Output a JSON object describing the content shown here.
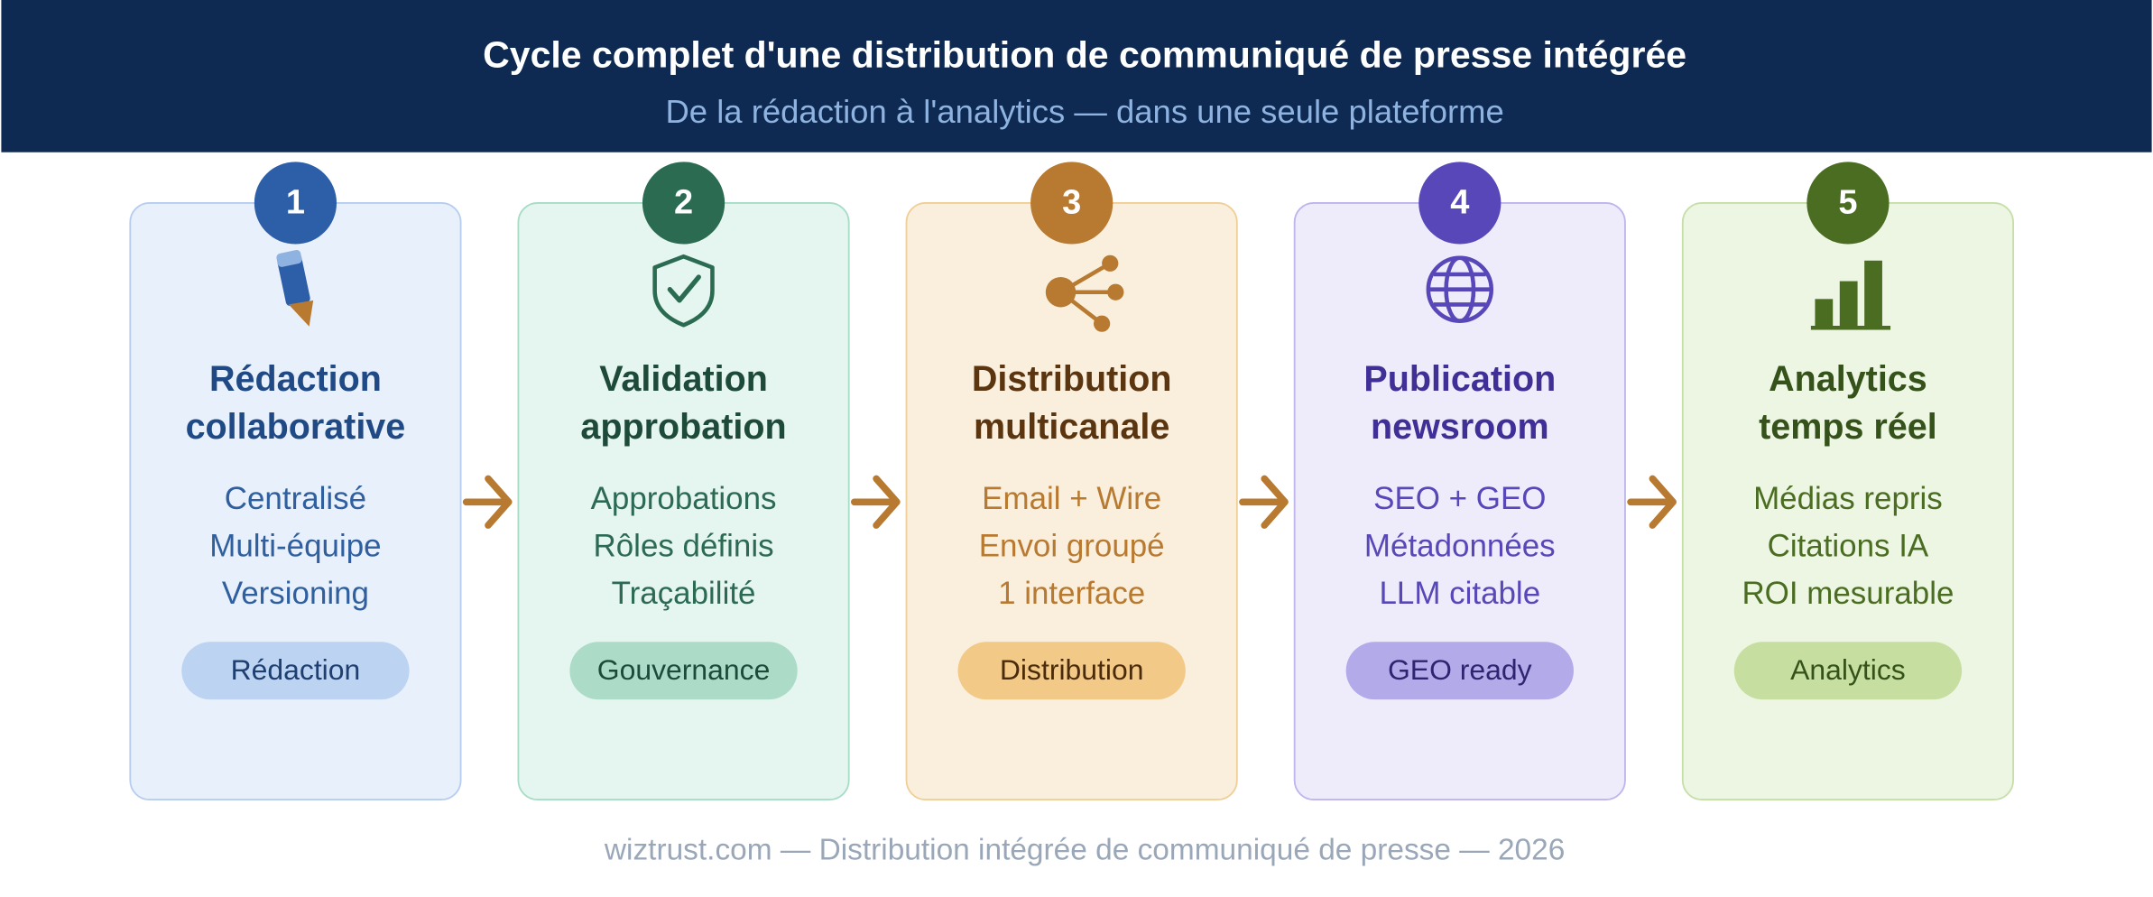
{
  "header": {
    "title": "Cycle complet d'une distribution de communiqué de presse intégrée",
    "subtitle": "De la rédaction à l'analytics — dans une seule plateforme"
  },
  "steps": [
    {
      "number": "1",
      "title": [
        "Rédaction",
        "collaborative"
      ],
      "items": [
        "Centralisé",
        "Multi-équipe",
        "Versioning"
      ],
      "tag": "Rédaction"
    },
    {
      "number": "2",
      "title": [
        "Validation",
        "approbation"
      ],
      "items": [
        "Approbations",
        "Rôles définis",
        "Traçabilité"
      ],
      "tag": "Gouvernance"
    },
    {
      "number": "3",
      "title": [
        "Distribution",
        "multicanale"
      ],
      "items": [
        "Email + Wire",
        "Envoi groupé",
        "1 interface"
      ],
      "tag": "Distribution"
    },
    {
      "number": "4",
      "title": [
        "Publication",
        "newsroom"
      ],
      "items": [
        "SEO + GEO",
        "Métadonnées",
        "LLM citable"
      ],
      "tag": "GEO ready"
    },
    {
      "number": "5",
      "title": [
        "Analytics",
        "temps réel"
      ],
      "items": [
        "Médias repris",
        "Citations IA",
        "ROI mesurable"
      ],
      "tag": "Analytics"
    }
  ],
  "footer": "wiztrust.com — Distribution intégrée de communiqué de presse — 2026"
}
